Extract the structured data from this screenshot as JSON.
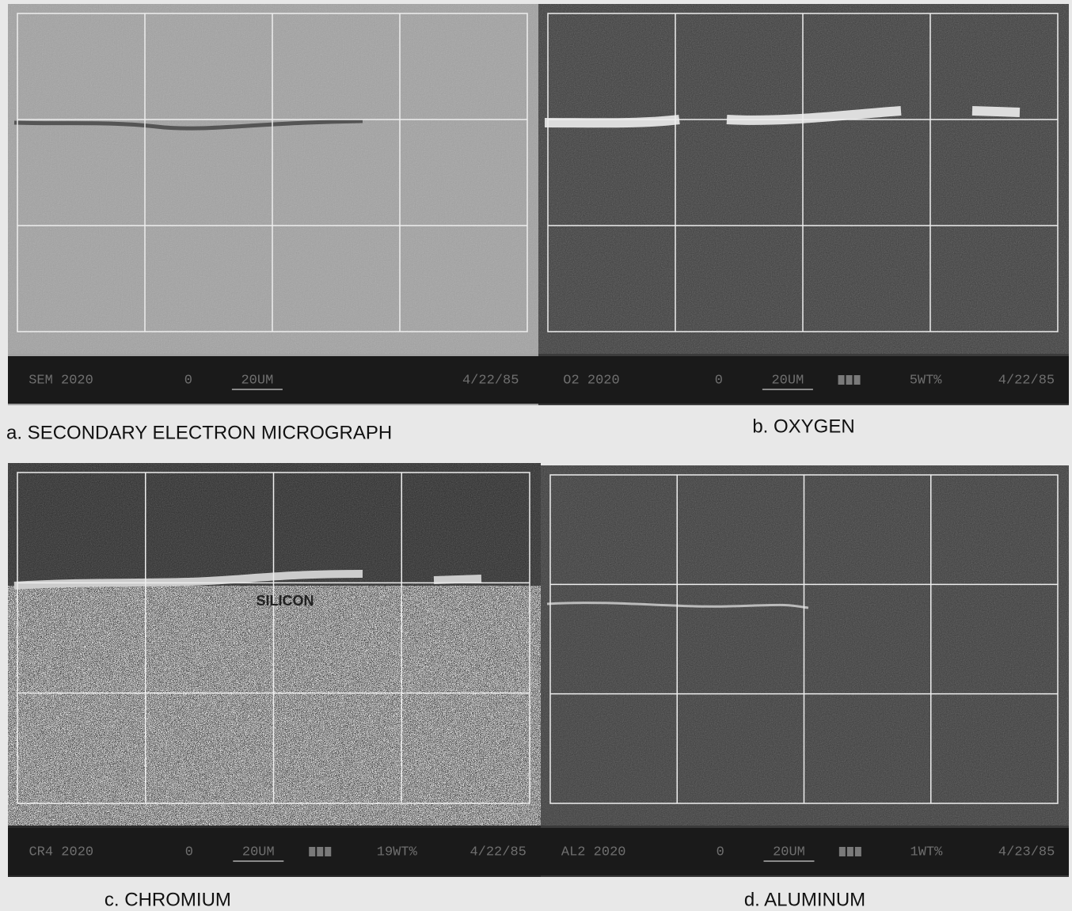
{
  "panels": [
    {
      "bar": [
        "SEM 2020",
        "0",
        "20UM",
        "4/22/85"
      ],
      "caption": "a. SECONDARY ELECTRON MICROGRAPH"
    },
    {
      "bar": [
        "O2 2020",
        "0",
        "20UM",
        "5WT%",
        "4/22/85"
      ],
      "caption": "b. OXYGEN"
    },
    {
      "bar": [
        "CR4 2020",
        "0",
        "20UM",
        "19WT%",
        "4/22/85"
      ],
      "caption": "c. CHROMIUM",
      "annotation": "SILICON"
    },
    {
      "bar": [
        "AL2 2020",
        "0",
        "20UM",
        "1WT%",
        "4/23/85"
      ],
      "caption": "d. ALUMINUM"
    }
  ]
}
